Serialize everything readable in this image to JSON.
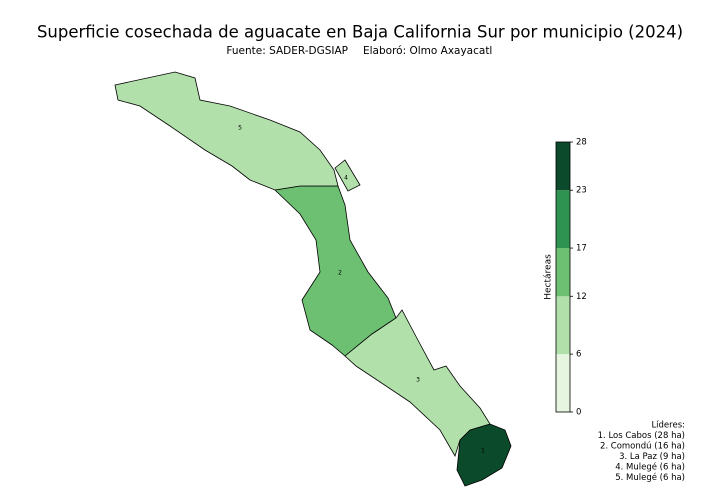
{
  "chart_data": {
    "type": "choropleth",
    "title": "Superficie cosechada de aguacate en Baja California Sur por municipio (2024)",
    "source": "Fuente: SADER-DGSIAP",
    "author": "Elaboró: Olmo Axayacatl",
    "colorbar_label": "Hectáreas",
    "colorbar_lim": [
      0,
      28
    ],
    "colorbar_ticks": [
      0,
      6,
      12,
      17,
      23,
      28
    ],
    "colorbar_colors": [
      "#e5f5e0",
      "#b2e0ab",
      "#6dc072",
      "#2e9350",
      "#0b4a2a"
    ],
    "regions": [
      {
        "label": "1",
        "value": 28
      },
      {
        "label": "2",
        "value": 16
      },
      {
        "label": "3",
        "value": 9
      },
      {
        "label": "4",
        "value": 6
      },
      {
        "label": "5",
        "value": 6
      }
    ],
    "leaders_title": "Líderes:",
    "leaders": [
      "1. Los Cabos (28 ha)",
      "2. Comondú (16 ha)",
      "3. La Paz (9 ha)",
      "4. Mulegé (6 ha)",
      "5. Mulegé (6 ha)"
    ]
  }
}
